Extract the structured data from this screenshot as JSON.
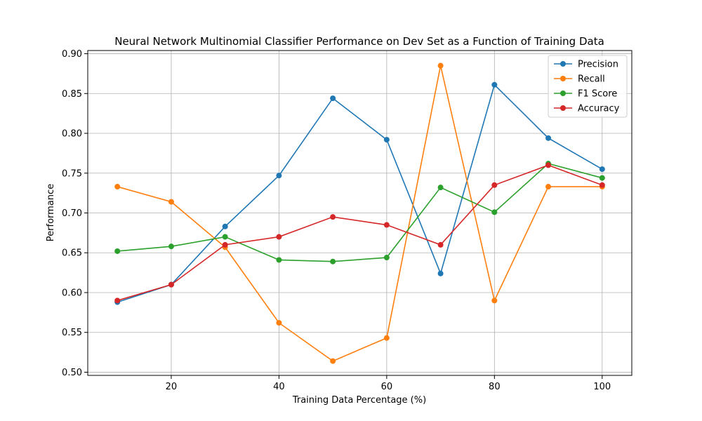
{
  "chart_data": {
    "type": "line",
    "title": "Neural Network Multinomial Classifier Performance on Dev Set as a Function of Training Data",
    "xlabel": "Training Data Percentage (%)",
    "ylabel": "Performance",
    "x": [
      10,
      20,
      30,
      40,
      50,
      60,
      70,
      80,
      90,
      100
    ],
    "xlim": [
      4.5,
      105.5
    ],
    "ylim": [
      0.496,
      0.904
    ],
    "xticks": [
      20,
      40,
      60,
      80,
      100
    ],
    "yticks": [
      0.5,
      0.55,
      0.6,
      0.65,
      0.7,
      0.75,
      0.8,
      0.85,
      0.9
    ],
    "xtick_labels": [
      "20",
      "40",
      "60",
      "80",
      "100"
    ],
    "ytick_labels": [
      "0.50",
      "0.55",
      "0.60",
      "0.65",
      "0.70",
      "0.75",
      "0.80",
      "0.85",
      "0.90"
    ],
    "grid": true,
    "legend_position": "top-right",
    "series": [
      {
        "name": "Precision",
        "color": "#1f77b4",
        "values": [
          0.588,
          0.61,
          0.683,
          0.747,
          0.844,
          0.792,
          0.624,
          0.861,
          0.794,
          0.755
        ]
      },
      {
        "name": "Recall",
        "color": "#ff7f0e",
        "values": [
          0.733,
          0.714,
          0.657,
          0.562,
          0.514,
          0.543,
          0.885,
          0.59,
          0.733,
          0.733
        ]
      },
      {
        "name": "F1 Score",
        "color": "#2ca02c",
        "values": [
          0.652,
          0.658,
          0.67,
          0.641,
          0.639,
          0.644,
          0.732,
          0.701,
          0.762,
          0.744
        ]
      },
      {
        "name": "Accuracy",
        "color": "#d62728",
        "values": [
          0.59,
          0.61,
          0.66,
          0.67,
          0.695,
          0.685,
          0.66,
          0.735,
          0.76,
          0.735
        ]
      }
    ]
  }
}
